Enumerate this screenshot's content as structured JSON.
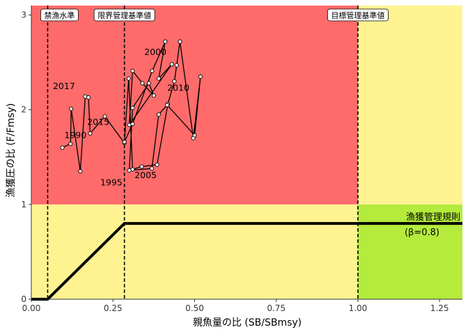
{
  "chart_data": {
    "type": "scatter",
    "xlabel": "親魚量の比 (SB/SBmsy)",
    "ylabel": "漁獲圧の比 (F/Fmsy)",
    "xlim": [
      0,
      1.32
    ],
    "ylim": [
      0,
      3.1
    ],
    "x_ticks": [
      "0.00",
      "0.25",
      "0.50",
      "0.75",
      "1.00",
      "1.25"
    ],
    "y_ticks": [
      "0",
      "1",
      "2",
      "3"
    ],
    "zones": {
      "upper_left_color": "#ff6b6b",
      "upper_right_color": "#fff391",
      "lower_left_color": "#fff391",
      "lower_right_color": "#b4eb3c",
      "x_split": 1.0,
      "y_split": 1.0
    },
    "reference_lines": [
      {
        "label": "禁漁水準",
        "x": 0.05
      },
      {
        "label": "限界管理基準値",
        "x": 0.285
      },
      {
        "label": "目標管理基準値",
        "x": 1.0
      }
    ],
    "harvest_control_rule": {
      "label": "漁獲管理規則",
      "beta_label": "(β=0.8)",
      "x": [
        0,
        0.05,
        0.285,
        1.32
      ],
      "y": [
        0,
        0,
        0.8,
        0.8
      ]
    },
    "series": [
      {
        "x": [
          0.095,
          0.12,
          0.122,
          0.15,
          0.165,
          0.175,
          0.18,
          0.2,
          0.225,
          0.28,
          0.225,
          0.165,
          0.175,
          0.15,
          0.12,
          0.095
        ],
        "y": [
          1.6,
          1.64,
          2.01,
          1.35,
          2.14,
          2.13,
          1.75,
          1.93,
          1.92,
          1.85,
          2.43,
          1.8,
          2.1,
          2.13,
          2.0,
          1.6
        ]
      }
    ],
    "trajectory": {
      "x": [
        0.095,
        0.12,
        0.122,
        0.15,
        0.165,
        0.175,
        0.18,
        0.225,
        0.285,
        0.298,
        0.31,
        0.338,
        0.385,
        0.418,
        0.438,
        0.445,
        0.455,
        0.496,
        0.518,
        0.5,
        0.416,
        0.39,
        0.369,
        0.3,
        0.31,
        0.36,
        0.375,
        0.34,
        0.31,
        0.3,
        0.43,
        0.39,
        0.41,
        0.37,
        0.31,
        0.285
      ],
      "y": [
        1.6,
        1.64,
        2.01,
        1.35,
        2.14,
        2.13,
        1.75,
        1.93,
        1.65,
        2.33,
        1.37,
        1.4,
        1.42,
        2.06,
        2.3,
        2.47,
        2.72,
        1.7,
        2.35,
        1.73,
        2.05,
        1.95,
        1.38,
        1.36,
        2.02,
        2.28,
        2.15,
        2.28,
        2.41,
        1.84,
        2.48,
        2.33,
        2.72,
        2.41,
        1.85,
        1.66
      ]
    },
    "year_labels": [
      {
        "text": "2000",
        "x": 0.38,
        "y": 2.58
      },
      {
        "text": "2010",
        "x": 0.45,
        "y": 2.2
      },
      {
        "text": "2017",
        "x": 0.1,
        "y": 2.22
      },
      {
        "text": "2015",
        "x": 0.205,
        "y": 1.84
      },
      {
        "text": "1990",
        "x": 0.135,
        "y": 1.7
      },
      {
        "text": "1995",
        "x": 0.245,
        "y": 1.2
      },
      {
        "text": "2005",
        "x": 0.35,
        "y": 1.28
      }
    ]
  }
}
